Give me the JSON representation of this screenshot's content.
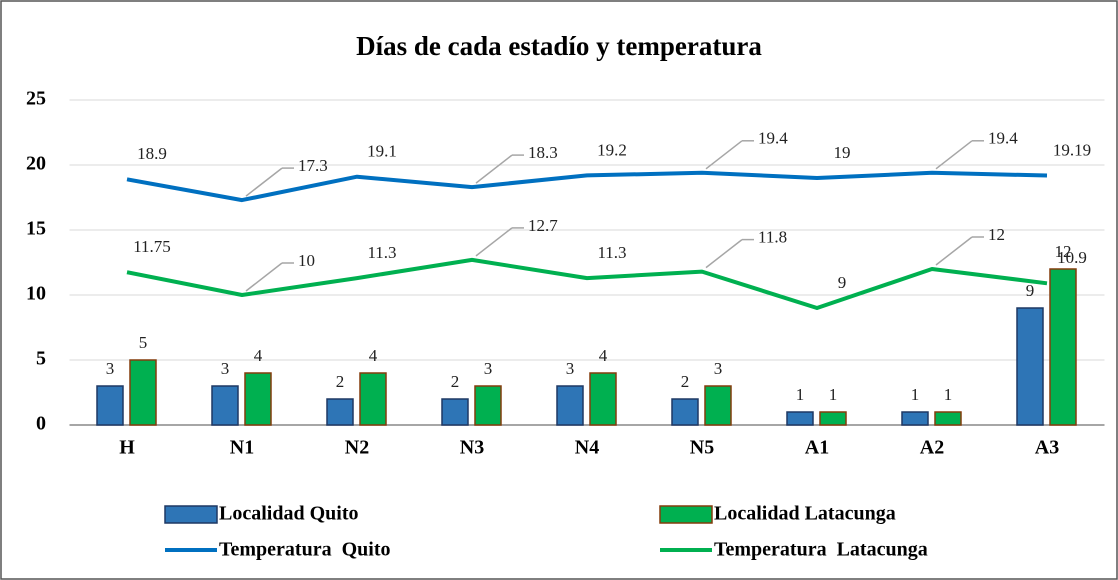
{
  "chart_data": {
    "type": "bar",
    "title": "Días de cada estadío y temperatura",
    "categories": [
      "H",
      "N1",
      "N2",
      "N3",
      "N4",
      "N5",
      "A1",
      "A2",
      "A3"
    ],
    "series": [
      {
        "name": "Localidad Quito",
        "type": "bar",
        "color": "#2e75b6",
        "values": [
          3,
          3,
          2,
          2,
          3,
          2,
          1,
          1,
          9
        ]
      },
      {
        "name": "Localidad Latacunga",
        "type": "bar",
        "color": "#00b050",
        "values": [
          5,
          4,
          4,
          3,
          4,
          3,
          1,
          1,
          12
        ]
      },
      {
        "name": "Temperatura  Quito",
        "type": "line",
        "color": "#0070c0",
        "values": [
          18.9,
          17.3,
          19.1,
          18.3,
          19.2,
          19.4,
          19,
          19.4,
          19.19
        ]
      },
      {
        "name": "Temperatura  Latacunga",
        "type": "line",
        "color": "#00b050",
        "values": [
          11.75,
          10,
          11.3,
          12.7,
          11.3,
          11.8,
          9,
          12,
          10.9
        ]
      }
    ],
    "ylim": [
      0,
      25
    ],
    "yticks": [
      0,
      5,
      10,
      15,
      20,
      25
    ],
    "grid": true
  }
}
